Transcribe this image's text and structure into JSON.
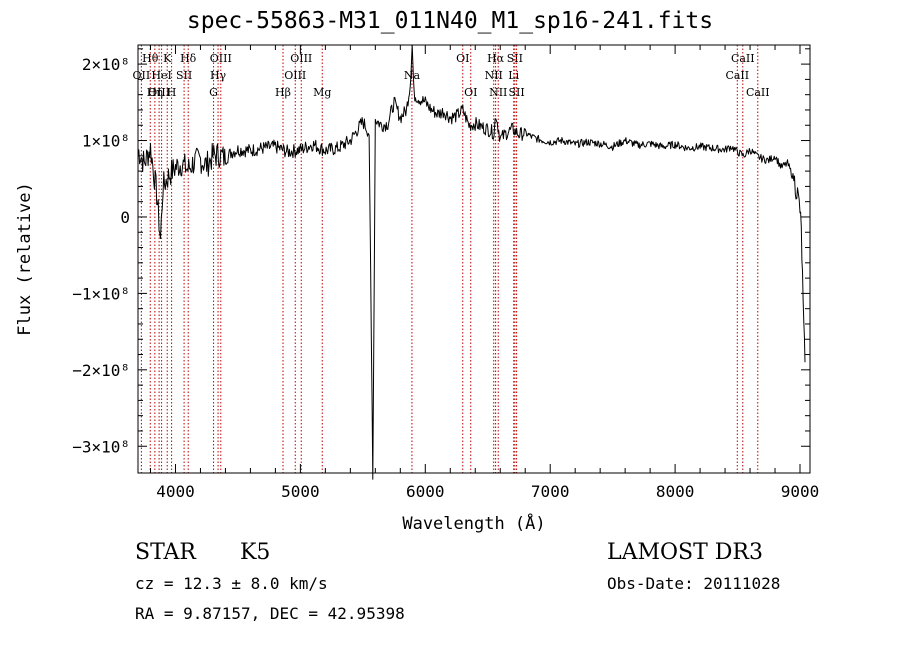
{
  "chart_data": {
    "type": "line",
    "title": "spec-55863-M31_011N40_M1_sp16-241.fits",
    "xlabel": "Wavelength (Å)",
    "ylabel": "Flux (relative)",
    "xlim": [
      3700,
      9080
    ],
    "ylim": [
      -335000000.0,
      225000000.0
    ],
    "xticks": [
      {
        "value": 4000,
        "label": "4000"
      },
      {
        "value": 5000,
        "label": "5000"
      },
      {
        "value": 6000,
        "label": "6000"
      },
      {
        "value": 7000,
        "label": "7000"
      },
      {
        "value": 8000,
        "label": "8000"
      },
      {
        "value": 9000,
        "label": "9000"
      }
    ],
    "yticks": [
      {
        "value": 200000000,
        "label": "2×10⁸"
      },
      {
        "value": 100000000,
        "label": "1×10⁸"
      },
      {
        "value": 0,
        "label": "0"
      },
      {
        "value": -100000000,
        "label": "−1×10⁸"
      },
      {
        "value": -200000000,
        "label": "−2×10⁸"
      },
      {
        "value": -300000000,
        "label": "−3×10⁸"
      }
    ],
    "lines": [
      {
        "name": "Hθ",
        "wavelength": 3798,
        "row": 1
      },
      {
        "name": "OII",
        "wavelength": 3727,
        "row": 2
      },
      {
        "name": "OIII",
        "wavelength": 3869,
        "row": 3
      },
      {
        "name": "K",
        "wavelength": 3934,
        "row": 1
      },
      {
        "name": "HeI",
        "wavelength": 3889,
        "row": 2
      },
      {
        "name": "Hη",
        "wavelength": 3835,
        "row": 3
      },
      {
        "name": "SII",
        "wavelength": 4069,
        "row": 2
      },
      {
        "name": "H",
        "wavelength": 3969,
        "row": 3
      },
      {
        "name": "Hδ",
        "wavelength": 4102,
        "row": 1
      },
      {
        "name": "OIII",
        "wavelength": 4363,
        "row": 1
      },
      {
        "name": "Hγ",
        "wavelength": 4341,
        "row": 2
      },
      {
        "name": "G",
        "wavelength": 4305,
        "row": 3
      },
      {
        "name": "OIII",
        "wavelength": 5007,
        "row": 1
      },
      {
        "name": "OIII",
        "wavelength": 4959,
        "row": 2
      },
      {
        "name": "Hβ",
        "wavelength": 4861,
        "row": 3
      },
      {
        "name": "Mg",
        "wavelength": 5175,
        "row": 3
      },
      {
        "name": "Na",
        "wavelength": 5893,
        "row": 2
      },
      {
        "name": "OI",
        "wavelength": 6300,
        "row": 1
      },
      {
        "name": "OI",
        "wavelength": 6364,
        "row": 3
      },
      {
        "name": "Hα",
        "wavelength": 6563,
        "row": 1
      },
      {
        "name": "NII",
        "wavelength": 6548,
        "row": 2
      },
      {
        "name": "NII",
        "wavelength": 6584,
        "row": 3
      },
      {
        "name": "SII",
        "wavelength": 6717,
        "row": 1
      },
      {
        "name": "Li",
        "wavelength": 6708,
        "row": 2
      },
      {
        "name": "SII",
        "wavelength": 6731,
        "row": 3
      },
      {
        "name": "CaII",
        "wavelength": 8542,
        "row": 1
      },
      {
        "name": "CaII",
        "wavelength": 8498,
        "row": 2
      },
      {
        "name": "CaII",
        "wavelength": 8662,
        "row": 3
      }
    ],
    "series": [
      {
        "name": "flux",
        "x": [
          3700,
          3750,
          3800,
          3850,
          3880,
          3900,
          3950,
          4000,
          4050,
          4100,
          4150,
          4200,
          4250,
          4300,
          4350,
          4400,
          4450,
          4500,
          4600,
          4700,
          4800,
          4900,
          5000,
          5100,
          5200,
          5300,
          5400,
          5500,
          5550,
          5580,
          5600,
          5650,
          5700,
          5750,
          5800,
          5850,
          5880,
          5895,
          5910,
          5950,
          6000,
          6050,
          6100,
          6150,
          6200,
          6250,
          6300,
          6350,
          6400,
          6450,
          6500,
          6550,
          6565,
          6600,
          6650,
          6700,
          6750,
          6800,
          6850,
          6900,
          7000,
          7100,
          7200,
          7300,
          7400,
          7500,
          7600,
          7700,
          7800,
          7900,
          8000,
          8100,
          8200,
          8300,
          8400,
          8450,
          8500,
          8550,
          8600,
          8650,
          8700,
          8750,
          8800,
          8850,
          8900,
          8950,
          8980,
          9000,
          9010,
          9020,
          9030,
          9040
        ],
        "y": [
          88000000,
          70000000,
          90000000,
          30000000,
          -30000000,
          40000000,
          55000000,
          65000000,
          70000000,
          62000000,
          72000000,
          75000000,
          68000000,
          80000000,
          82000000,
          76000000,
          85000000,
          88000000,
          87000000,
          90000000,
          92000000,
          85000000,
          88000000,
          95000000,
          87000000,
          90000000,
          100000000,
          125000000,
          110000000,
          -335000000,
          128000000,
          120000000,
          122000000,
          150000000,
          130000000,
          140000000,
          175000000,
          225000000,
          160000000,
          155000000,
          150000000,
          140000000,
          135000000,
          138000000,
          130000000,
          132000000,
          140000000,
          120000000,
          122000000,
          118000000,
          115000000,
          110000000,
          135000000,
          102000000,
          110000000,
          115000000,
          108000000,
          110000000,
          105000000,
          102000000,
          98000000,
          100000000,
          95000000,
          98000000,
          96000000,
          92000000,
          100000000,
          94000000,
          96000000,
          92000000,
          95000000,
          90000000,
          92000000,
          90000000,
          88000000,
          92000000,
          85000000,
          80000000,
          88000000,
          80000000,
          76000000,
          74000000,
          80000000,
          65000000,
          70000000,
          50000000,
          30000000,
          10000000,
          -20000000,
          -80000000,
          -150000000,
          -190000000
        ]
      }
    ]
  },
  "info": {
    "object_class": "STAR",
    "subclass": "K5",
    "survey": "LAMOST DR3",
    "cz": "cz = 12.3 ± 8.0 km/s",
    "obs_date": "Obs-Date: 20111028",
    "radec": "RA =   9.87157, DEC =  42.95398"
  },
  "colors": {
    "line_marker": "#c00000",
    "spectrum": "#000000",
    "axis": "#000000"
  }
}
